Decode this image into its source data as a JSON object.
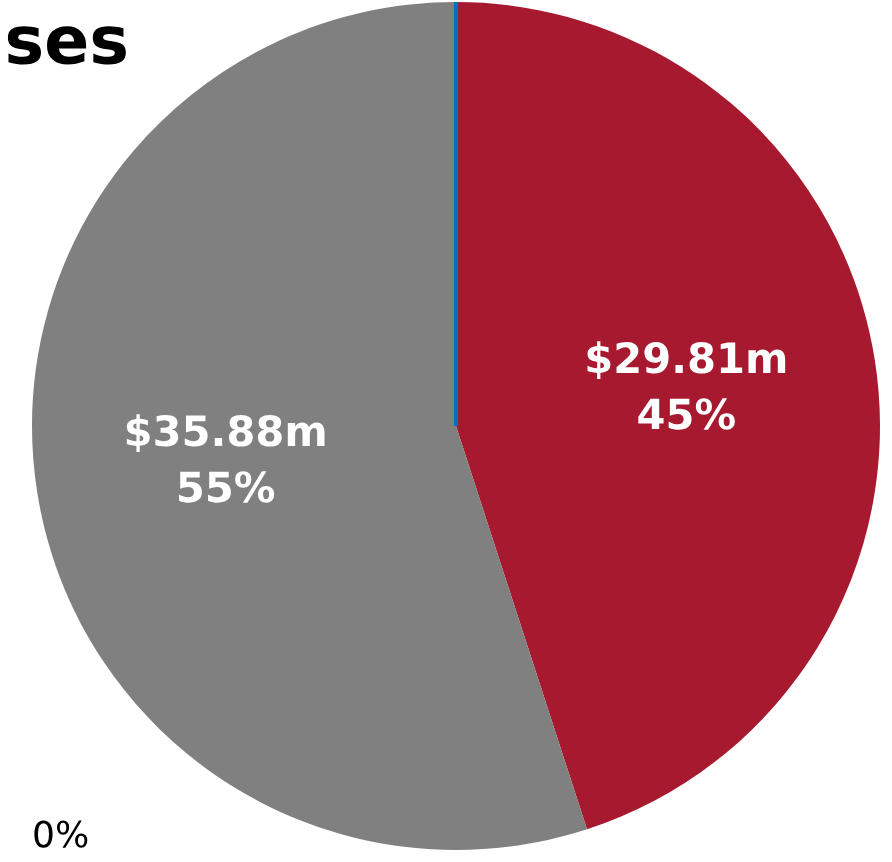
{
  "chart_data": {
    "type": "pie",
    "title": "ses",
    "categories": [
      null,
      null,
      null
    ],
    "values": [
      45,
      55,
      0
    ],
    "colors": [
      "#a6192e",
      "#808080",
      "#0070c0"
    ],
    "value_labels": [
      "$29.81m\n45%",
      "$35.88m\n55%",
      null
    ],
    "annotations": [
      "0%"
    ]
  }
}
